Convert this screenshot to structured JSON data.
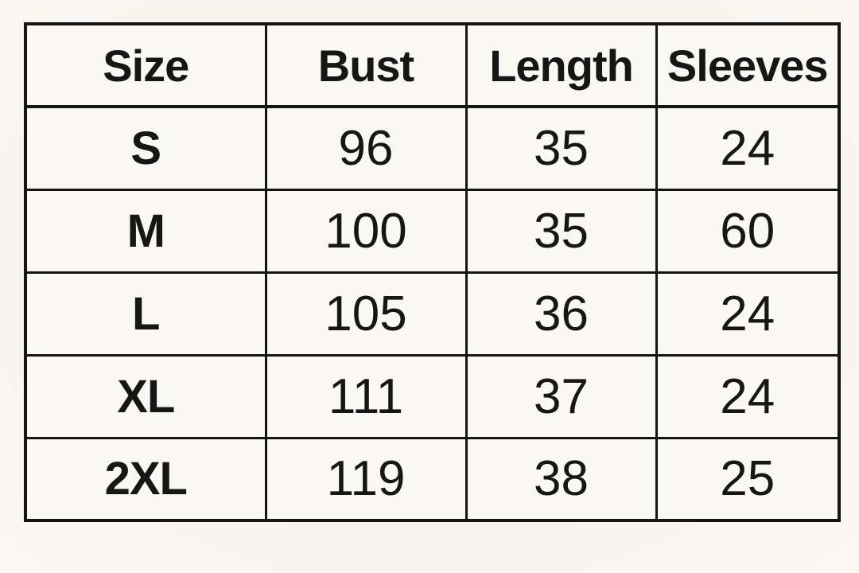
{
  "chart_data": {
    "type": "table",
    "columns": [
      "Size",
      "Bust",
      "Length",
      "Sleeves"
    ],
    "rows": [
      [
        "S",
        96,
        35,
        24
      ],
      [
        "M",
        100,
        35,
        60
      ],
      [
        "L",
        105,
        36,
        24
      ],
      [
        "XL",
        111,
        37,
        24
      ],
      [
        "2XL",
        119,
        38,
        25
      ]
    ],
    "layout": {
      "grid": "on",
      "header_row": true,
      "first_column_is_label": true
    }
  },
  "colors": {
    "page_background": "#f7f4ed",
    "cell_background": "#faf8f2",
    "grid_border": "#141414",
    "text": "#161616"
  }
}
